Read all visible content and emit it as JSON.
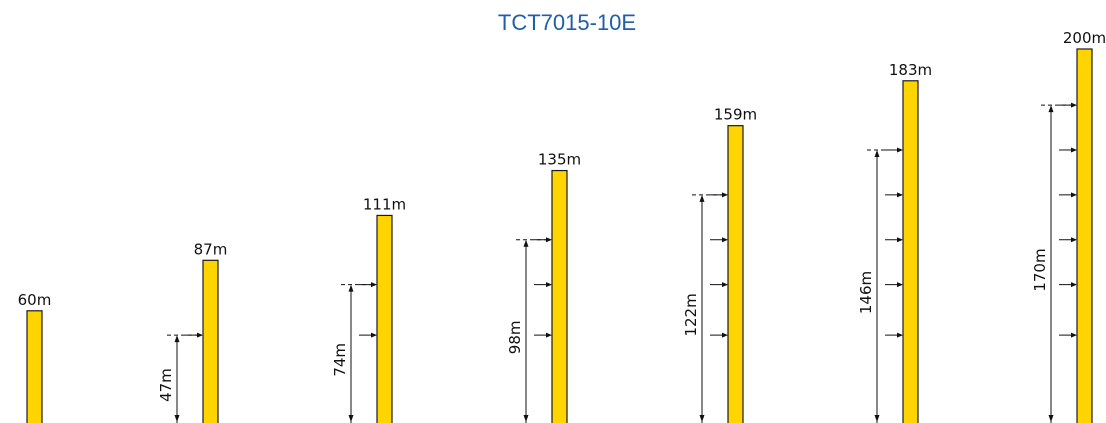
{
  "title": "TCT7015-10E",
  "colors": {
    "mast": "#ffd400",
    "title": "#1f5fa8",
    "line": "#111111"
  },
  "configurations": [
    {
      "height_label": "60m",
      "height": 60,
      "anchor_label": "",
      "anchor": null,
      "ties": []
    },
    {
      "height_label": "87m",
      "height": 87,
      "anchor_label": "47m",
      "anchor": 47,
      "ties": [
        47
      ]
    },
    {
      "height_label": "111m",
      "height": 111,
      "anchor_label": "74m",
      "anchor": 74,
      "ties": [
        47,
        74
      ]
    },
    {
      "height_label": "135m",
      "height": 135,
      "anchor_label": "98m",
      "anchor": 98,
      "ties": [
        47,
        74,
        98
      ]
    },
    {
      "height_label": "159m",
      "height": 159,
      "anchor_label": "122m",
      "anchor": 122,
      "ties": [
        47,
        74,
        98,
        122
      ]
    },
    {
      "height_label": "183m",
      "height": 183,
      "anchor_label": "146m",
      "anchor": 146,
      "ties": [
        47,
        74,
        98,
        122,
        146
      ]
    },
    {
      "height_label": "200m",
      "height": 200,
      "anchor_label": "170m",
      "anchor": 170,
      "ties": [
        47,
        74,
        98,
        122,
        146,
        170
      ]
    }
  ]
}
